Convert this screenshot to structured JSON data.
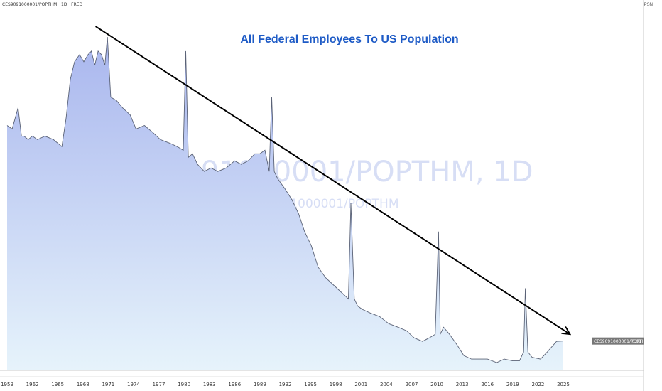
{
  "header": {
    "symbol_line": "CES9091000001/POPTHM · 1D · FRED"
  },
  "price_scale": {
    "label": "PSN"
  },
  "watermark": {
    "main": "CES9091000001/POPTHM, 1D",
    "sub": "CES9091000001/POPTHM"
  },
  "price_tag": {
    "label": "CES9091000001/POPTHM",
    "value": "6.01"
  },
  "colors": {
    "fill_top": "#a9b6ee",
    "fill_bottom": "#e6f3fb",
    "line": "#5a6276",
    "title": "#1e5bc6",
    "arrow": "#000000",
    "watermark": "#d7def5"
  },
  "chart_data": {
    "type": "area",
    "title": "All Federal Employees To US Population",
    "x_tick_labels": [
      "1959",
      "1962",
      "1965",
      "1968",
      "1971",
      "1974",
      "1977",
      "1980",
      "1983",
      "1986",
      "1989",
      "1992",
      "1995",
      "1998",
      "2001",
      "2004",
      "2007",
      "2010",
      "2013",
      "2016",
      "2019",
      "2022",
      "2025"
    ],
    "xlim": [
      1959,
      2025
    ],
    "ylim": [
      5.2,
      14.6
    ],
    "grid": false,
    "last_value": 6.01,
    "series": [
      {
        "x": [
          1959.0,
          1959.6,
          1960.3,
          1960.7,
          1961.0,
          1961.5,
          1962.0,
          1962.6,
          1963.5,
          1964.5,
          1965.5,
          1966.0,
          1966.5,
          1967.0,
          1967.6,
          1968.1,
          1968.6,
          1969.0,
          1969.4,
          1969.8,
          1970.2,
          1970.6,
          1970.9,
          1971.3,
          1972.0,
          1972.7,
          1973.6,
          1974.3,
          1975.3,
          1976.3,
          1977.2,
          1978.3,
          1979.2,
          1979.9,
          1980.2,
          1980.5,
          1981.0,
          1981.6,
          1982.4,
          1983.2,
          1984.0,
          1985.0,
          1986.0,
          1986.8,
          1987.6,
          1988.4,
          1989.0,
          1989.6,
          1990.1,
          1990.4,
          1990.7,
          1991.1,
          1992.0,
          1992.8,
          1993.6,
          1994.3,
          1995.1,
          1995.9,
          1996.8,
          1997.7,
          1998.6,
          1999.5,
          1999.8,
          2000.2,
          2000.6,
          2001.2,
          2002.1,
          2003.2,
          2004.3,
          2005.4,
          2006.4,
          2007.3,
          2008.3,
          2009.1,
          2009.8,
          2010.2,
          2010.4,
          2010.8,
          2011.5,
          2012.4,
          2013.2,
          2014.1,
          2014.9,
          2016.0,
          2017.1,
          2018.0,
          2019.0,
          2019.8,
          2020.3,
          2020.5,
          2020.8,
          2021.3,
          2022.3,
          2023.1,
          2024.2,
          2025.0
        ],
        "values": [
          12.1,
          12.0,
          12.6,
          11.8,
          11.8,
          11.7,
          11.8,
          11.7,
          11.8,
          11.7,
          11.5,
          12.3,
          13.4,
          13.9,
          14.1,
          13.9,
          14.1,
          14.2,
          13.8,
          14.2,
          14.1,
          13.8,
          14.6,
          12.9,
          12.8,
          12.6,
          12.4,
          12.0,
          12.1,
          11.9,
          11.7,
          11.6,
          11.5,
          11.4,
          14.2,
          11.2,
          11.3,
          11.0,
          10.8,
          10.9,
          10.8,
          10.9,
          11.1,
          11.0,
          11.1,
          11.3,
          11.3,
          11.4,
          10.8,
          12.9,
          10.8,
          10.6,
          10.3,
          10.0,
          9.6,
          9.1,
          8.7,
          8.1,
          7.8,
          7.6,
          7.4,
          7.2,
          9.9,
          7.2,
          7.0,
          6.9,
          6.8,
          6.7,
          6.5,
          6.4,
          6.3,
          6.1,
          6.0,
          6.1,
          6.2,
          9.1,
          6.2,
          6.4,
          6.2,
          5.9,
          5.6,
          5.5,
          5.5,
          5.5,
          5.4,
          5.5,
          5.45,
          5.45,
          5.7,
          7.5,
          5.7,
          5.55,
          5.5,
          5.7,
          6.0,
          6.01
        ]
      }
    ],
    "annotations": [
      {
        "type": "trend-arrow",
        "from": [
          1969.5,
          14.9
        ],
        "to": [
          2025.8,
          6.2
        ]
      }
    ]
  }
}
